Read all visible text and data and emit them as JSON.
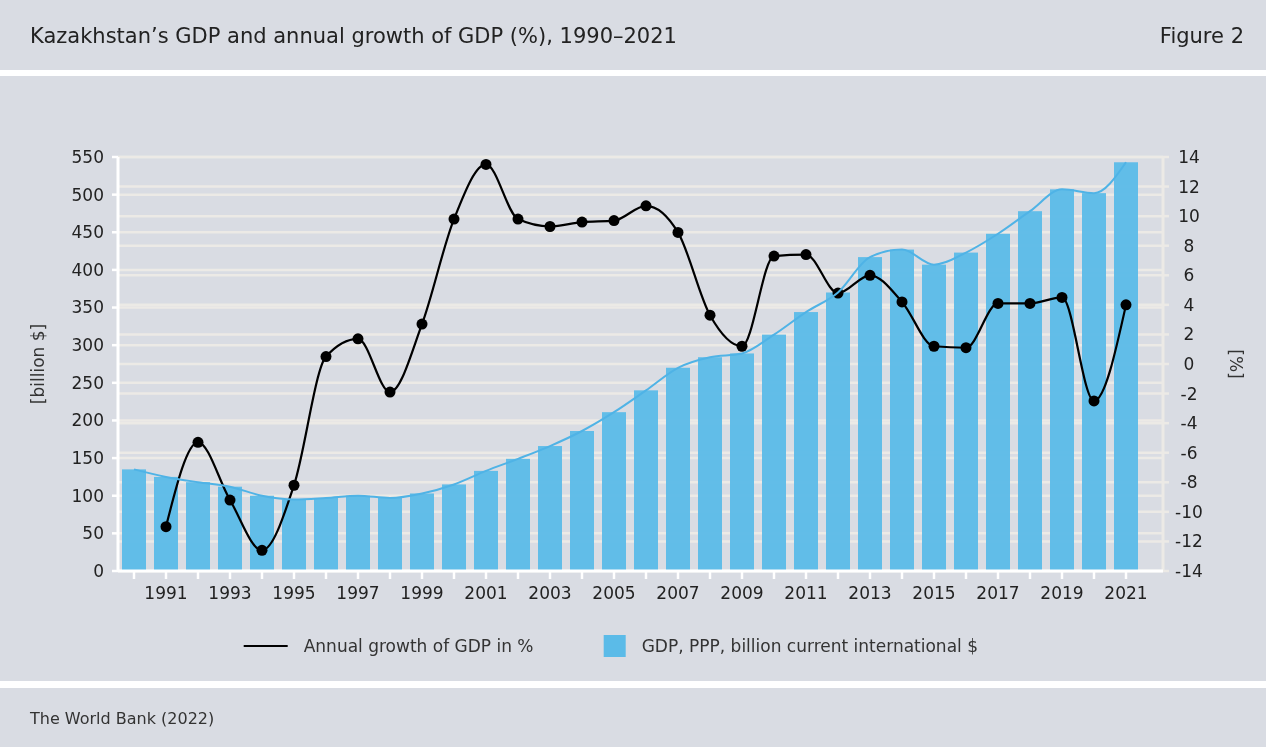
{
  "chart_data": {
    "type": "bar",
    "title": "Kazakhstan’s GDP and annual growth of GDP (%), 1990–2021",
    "annotations": [
      "Figure 2",
      "The World Bank (2022)"
    ],
    "ylabel": "[billion $]",
    "y2label": "[%]",
    "categories": [
      null,
      "1991",
      null,
      "1993",
      null,
      "1995",
      null,
      "1997",
      null,
      "1999",
      null,
      "2001",
      null,
      "2003",
      null,
      "2005",
      null,
      "2007",
      null,
      "2009",
      null,
      "2011",
      null,
      "2013",
      null,
      "2015",
      null,
      "2017",
      null,
      "2019",
      null,
      "2021"
    ],
    "series": [
      {
        "name": "Annual growth of GDP in %",
        "type": "line",
        "axis": "y2",
        "color": "#000000",
        "marker": "circle",
        "values": [
          null,
          -11.0,
          -5.3,
          -9.2,
          -12.6,
          -8.2,
          0.5,
          1.7,
          -1.9,
          2.7,
          9.8,
          13.5,
          9.8,
          9.3,
          9.6,
          9.7,
          10.7,
          8.9,
          3.3,
          1.2,
          7.3,
          7.4,
          4.8,
          6.0,
          4.2,
          1.2,
          1.1,
          4.1,
          4.1,
          4.5,
          -2.5,
          4.0
        ]
      },
      {
        "name": "GDP, PPP, billion current international $",
        "color": "#5bbbe8",
        "values": [
          135,
          125,
          118,
          112,
          100,
          95,
          97,
          100,
          97,
          103,
          115,
          133,
          149,
          166,
          186,
          211,
          240,
          270,
          284,
          289,
          314,
          344,
          370,
          417,
          427,
          407,
          423,
          448,
          478,
          507,
          502,
          543
        ]
      },
      {
        "type": "line",
        "color": "#4fb3e6",
        "marker": "none",
        "values": [
          135,
          125,
          118,
          112,
          100,
          95,
          97,
          100,
          97,
          103,
          115,
          133,
          149,
          166,
          186,
          211,
          240,
          270,
          284,
          289,
          314,
          344,
          370,
          417,
          427,
          407,
          423,
          448,
          478,
          507,
          502,
          543
        ]
      }
    ],
    "ylim": [
      0,
      550
    ],
    "yticks": [
      0,
      50,
      100,
      150,
      200,
      250,
      300,
      350,
      400,
      450,
      500,
      550
    ],
    "y2lim": [
      -14,
      14
    ],
    "y2ticks": [
      -14,
      -12,
      -10,
      -8,
      -6,
      -4,
      -2,
      0,
      2,
      4,
      6,
      8,
      10,
      12,
      14
    ],
    "grid": true,
    "legend": "bottom"
  }
}
